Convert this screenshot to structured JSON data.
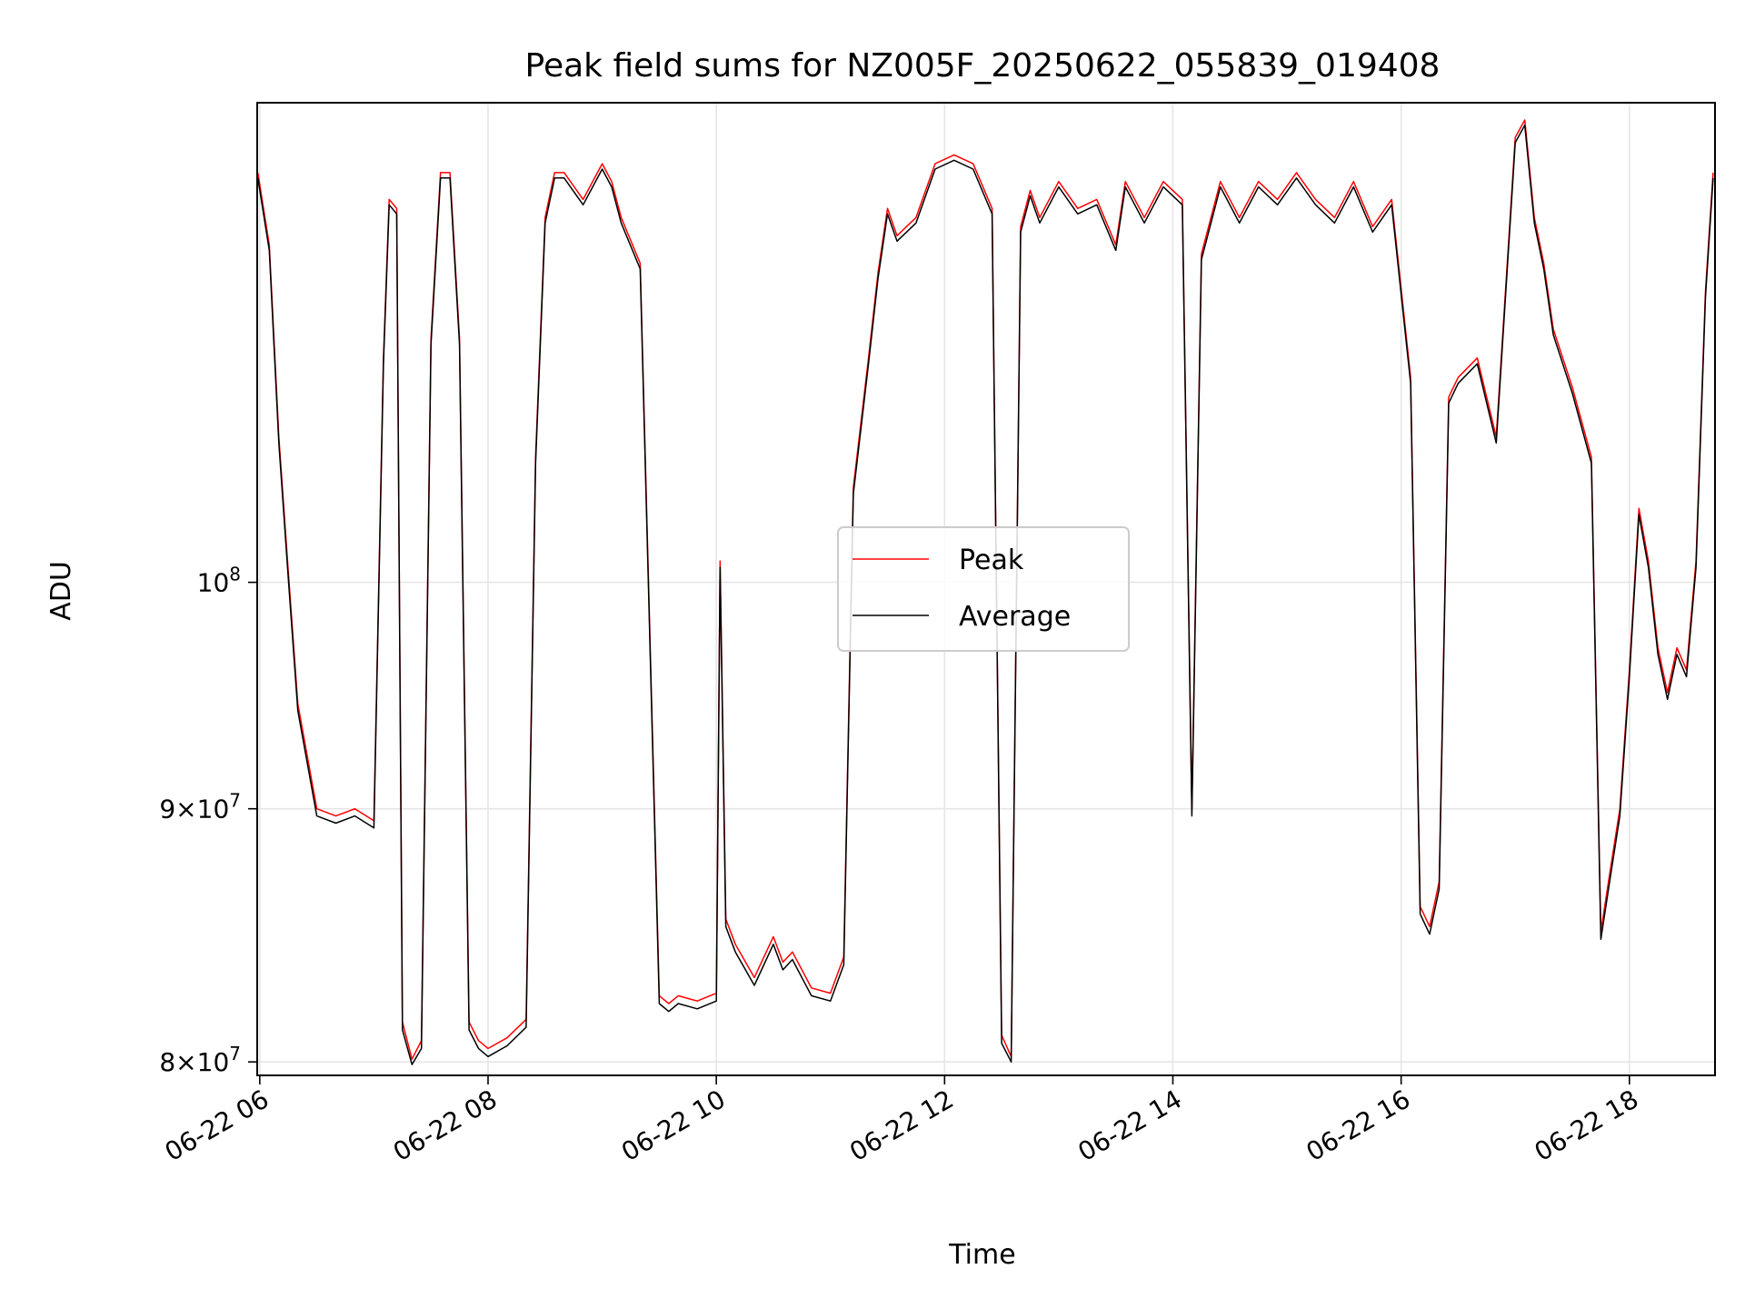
{
  "chart_data": {
    "type": "line",
    "title": "Peak field sums for NZ005F_20250622_055839_019408",
    "xlabel": "Time",
    "ylabel": "ADU",
    "x_range": [
      "2025-06-22T05:58:39",
      "2025-06-22T18:45:00"
    ],
    "y_scale": "log",
    "ylim": [
      79500000,
      125000000
    ],
    "grid": true,
    "legend_placement": "center",
    "x_ticks": [
      "06-22 06",
      "06-22 08",
      "06-22 10",
      "06-22 12",
      "06-22 14",
      "06-22 16",
      "06-22 18"
    ],
    "x_tick_times": [
      "2025-06-22T06:00",
      "2025-06-22T08:00",
      "2025-06-22T10:00",
      "2025-06-22T12:00",
      "2025-06-22T14:00",
      "2025-06-22T16:00",
      "2025-06-22T18:00"
    ],
    "y_ticks": [
      {
        "value": 80000000,
        "mantissa": "8",
        "exp": "7"
      },
      {
        "value": 90000000,
        "mantissa": "9",
        "exp": "7"
      },
      {
        "value": 100000000,
        "mantissa": "",
        "exp": "8"
      }
    ],
    "series": [
      {
        "name": "Peak",
        "color": "#ff0000",
        "x": [
          "2025-06-22T05:59",
          "2025-06-22T06:05",
          "2025-06-22T06:10",
          "2025-06-22T06:15",
          "2025-06-22T06:20",
          "2025-06-22T06:30",
          "2025-06-22T06:40",
          "2025-06-22T06:50",
          "2025-06-22T07:00",
          "2025-06-22T07:05",
          "2025-06-22T07:08",
          "2025-06-22T07:12",
          "2025-06-22T07:15",
          "2025-06-22T07:20",
          "2025-06-22T07:25",
          "2025-06-22T07:30",
          "2025-06-22T07:35",
          "2025-06-22T07:40",
          "2025-06-22T07:45",
          "2025-06-22T07:50",
          "2025-06-22T07:55",
          "2025-06-22T08:00",
          "2025-06-22T08:10",
          "2025-06-22T08:20",
          "2025-06-22T08:25",
          "2025-06-22T08:30",
          "2025-06-22T08:35",
          "2025-06-22T08:40",
          "2025-06-22T08:50",
          "2025-06-22T09:00",
          "2025-06-22T09:05",
          "2025-06-22T09:10",
          "2025-06-22T09:20",
          "2025-06-22T09:30",
          "2025-06-22T09:35",
          "2025-06-22T09:40",
          "2025-06-22T09:50",
          "2025-06-22T10:00",
          "2025-06-22T10:02",
          "2025-06-22T10:05",
          "2025-06-22T10:10",
          "2025-06-22T10:20",
          "2025-06-22T10:30",
          "2025-06-22T10:35",
          "2025-06-22T10:40",
          "2025-06-22T10:50",
          "2025-06-22T11:00",
          "2025-06-22T11:07",
          "2025-06-22T11:12",
          "2025-06-22T11:20",
          "2025-06-22T11:25",
          "2025-06-22T11:30",
          "2025-06-22T11:35",
          "2025-06-22T11:45",
          "2025-06-22T11:55",
          "2025-06-22T12:05",
          "2025-06-22T12:15",
          "2025-06-22T12:25",
          "2025-06-22T12:30",
          "2025-06-22T12:35",
          "2025-06-22T12:40",
          "2025-06-22T12:45",
          "2025-06-22T12:50",
          "2025-06-22T13:00",
          "2025-06-22T13:10",
          "2025-06-22T13:20",
          "2025-06-22T13:30",
          "2025-06-22T13:35",
          "2025-06-22T13:45",
          "2025-06-22T13:55",
          "2025-06-22T14:05",
          "2025-06-22T14:10",
          "2025-06-22T14:15",
          "2025-06-22T14:25",
          "2025-06-22T14:35",
          "2025-06-22T14:45",
          "2025-06-22T14:55",
          "2025-06-22T15:05",
          "2025-06-22T15:15",
          "2025-06-22T15:25",
          "2025-06-22T15:35",
          "2025-06-22T15:45",
          "2025-06-22T15:55",
          "2025-06-22T16:05",
          "2025-06-22T16:10",
          "2025-06-22T16:15",
          "2025-06-22T16:20",
          "2025-06-22T16:25",
          "2025-06-22T16:30",
          "2025-06-22T16:40",
          "2025-06-22T16:50",
          "2025-06-22T17:00",
          "2025-06-22T17:05",
          "2025-06-22T17:10",
          "2025-06-22T17:15",
          "2025-06-22T17:20",
          "2025-06-22T17:30",
          "2025-06-22T17:40",
          "2025-06-22T17:45",
          "2025-06-22T17:50",
          "2025-06-22T17:55",
          "2025-06-22T18:00",
          "2025-06-22T18:05",
          "2025-06-22T18:10",
          "2025-06-22T18:15",
          "2025-06-22T18:20",
          "2025-06-22T18:25",
          "2025-06-22T18:30",
          "2025-06-22T18:35",
          "2025-06-22T18:40",
          "2025-06-22T18:44"
        ],
        "values": [
          121000000,
          117000000,
          107000000,
          100500000,
          94500000,
          90000000,
          89700000,
          90000000,
          89500000,
          111000000,
          119500000,
          119000000,
          81500000,
          80100000,
          80800000,
          112000000,
          121000000,
          121000000,
          112000000,
          81500000,
          80800000,
          80500000,
          80900000,
          81600000,
          106000000,
          118500000,
          121000000,
          121000000,
          119500000,
          121500000,
          120500000,
          118500000,
          116000000,
          82500000,
          82200000,
          82500000,
          82300000,
          82600000,
          101000000,
          85500000,
          84500000,
          83200000,
          84800000,
          83800000,
          84200000,
          82800000,
          82600000,
          84000000,
          104500000,
          111000000,
          115500000,
          119000000,
          117500000,
          118500000,
          121500000,
          122000000,
          121500000,
          119000000,
          81000000,
          80200000,
          118000000,
          120000000,
          118500000,
          120500000,
          119000000,
          119500000,
          117000000,
          120500000,
          118500000,
          120500000,
          119500000,
          90000000,
          116500000,
          120500000,
          118500000,
          120500000,
          119500000,
          121000000,
          119500000,
          118500000,
          120500000,
          118000000,
          119500000,
          110000000,
          86000000,
          85200000,
          87000000,
          109000000,
          110000000,
          111000000,
          107000000,
          123000000,
          124000000,
          118500000,
          116000000,
          112500000,
          109500000,
          106000000,
          85000000,
          87500000,
          90000000,
          96000000,
          103500000,
          101000000,
          97000000,
          95000000,
          97000000,
          96000000,
          101000000,
          114500000,
          121000000
        ]
      },
      {
        "name": "Average",
        "color": "#000000",
        "x": [
          "2025-06-22T05:59",
          "2025-06-22T06:05",
          "2025-06-22T06:10",
          "2025-06-22T06:15",
          "2025-06-22T06:20",
          "2025-06-22T06:30",
          "2025-06-22T06:40",
          "2025-06-22T06:50",
          "2025-06-22T07:00",
          "2025-06-22T07:05",
          "2025-06-22T07:08",
          "2025-06-22T07:12",
          "2025-06-22T07:15",
          "2025-06-22T07:20",
          "2025-06-22T07:25",
          "2025-06-22T07:30",
          "2025-06-22T07:35",
          "2025-06-22T07:40",
          "2025-06-22T07:45",
          "2025-06-22T07:50",
          "2025-06-22T07:55",
          "2025-06-22T08:00",
          "2025-06-22T08:10",
          "2025-06-22T08:20",
          "2025-06-22T08:25",
          "2025-06-22T08:30",
          "2025-06-22T08:35",
          "2025-06-22T08:40",
          "2025-06-22T08:50",
          "2025-06-22T09:00",
          "2025-06-22T09:05",
          "2025-06-22T09:10",
          "2025-06-22T09:20",
          "2025-06-22T09:30",
          "2025-06-22T09:35",
          "2025-06-22T09:40",
          "2025-06-22T09:50",
          "2025-06-22T10:00",
          "2025-06-22T10:02",
          "2025-06-22T10:05",
          "2025-06-22T10:10",
          "2025-06-22T10:20",
          "2025-06-22T10:30",
          "2025-06-22T10:35",
          "2025-06-22T10:40",
          "2025-06-22T10:50",
          "2025-06-22T11:00",
          "2025-06-22T11:07",
          "2025-06-22T11:12",
          "2025-06-22T11:20",
          "2025-06-22T11:25",
          "2025-06-22T11:30",
          "2025-06-22T11:35",
          "2025-06-22T11:45",
          "2025-06-22T11:55",
          "2025-06-22T12:05",
          "2025-06-22T12:15",
          "2025-06-22T12:25",
          "2025-06-22T12:30",
          "2025-06-22T12:35",
          "2025-06-22T12:40",
          "2025-06-22T12:45",
          "2025-06-22T12:50",
          "2025-06-22T13:00",
          "2025-06-22T13:10",
          "2025-06-22T13:20",
          "2025-06-22T13:30",
          "2025-06-22T13:35",
          "2025-06-22T13:45",
          "2025-06-22T13:55",
          "2025-06-22T14:05",
          "2025-06-22T14:10",
          "2025-06-22T14:15",
          "2025-06-22T14:25",
          "2025-06-22T14:35",
          "2025-06-22T14:45",
          "2025-06-22T14:55",
          "2025-06-22T15:05",
          "2025-06-22T15:15",
          "2025-06-22T15:25",
          "2025-06-22T15:35",
          "2025-06-22T15:45",
          "2025-06-22T15:55",
          "2025-06-22T16:05",
          "2025-06-22T16:10",
          "2025-06-22T16:15",
          "2025-06-22T16:20",
          "2025-06-22T16:25",
          "2025-06-22T16:30",
          "2025-06-22T16:40",
          "2025-06-22T16:50",
          "2025-06-22T17:00",
          "2025-06-22T17:05",
          "2025-06-22T17:10",
          "2025-06-22T17:15",
          "2025-06-22T17:20",
          "2025-06-22T17:30",
          "2025-06-22T17:40",
          "2025-06-22T17:45",
          "2025-06-22T17:50",
          "2025-06-22T17:55",
          "2025-06-22T18:00",
          "2025-06-22T18:05",
          "2025-06-22T18:10",
          "2025-06-22T18:15",
          "2025-06-22T18:20",
          "2025-06-22T18:25",
          "2025-06-22T18:30",
          "2025-06-22T18:35",
          "2025-06-22T18:40",
          "2025-06-22T18:44"
        ],
        "values": [
          120700000,
          116700000,
          106700000,
          100200000,
          94200000,
          89700000,
          89400000,
          89700000,
          89200000,
          110700000,
          119200000,
          118700000,
          81200000,
          79900000,
          80500000,
          111700000,
          120700000,
          120700000,
          111700000,
          81200000,
          80500000,
          80200000,
          80600000,
          81300000,
          105700000,
          118200000,
          120700000,
          120700000,
          119200000,
          121200000,
          120200000,
          118200000,
          115700000,
          82200000,
          81900000,
          82200000,
          82000000,
          82300000,
          100700000,
          85200000,
          84200000,
          82900000,
          84500000,
          83500000,
          83900000,
          82500000,
          82300000,
          83700000,
          104200000,
          110700000,
          115200000,
          118700000,
          117200000,
          118200000,
          121200000,
          121700000,
          121200000,
          118700000,
          80700000,
          80000000,
          117700000,
          119700000,
          118200000,
          120200000,
          118700000,
          119200000,
          116700000,
          120200000,
          118200000,
          120200000,
          119200000,
          89700000,
          116200000,
          120200000,
          118200000,
          120200000,
          119200000,
          120700000,
          119200000,
          118200000,
          120200000,
          117700000,
          119200000,
          109700000,
          85700000,
          84900000,
          86700000,
          108700000,
          109700000,
          110700000,
          106700000,
          122700000,
          123700000,
          118200000,
          115700000,
          112200000,
          109200000,
          105700000,
          84700000,
          87200000,
          89700000,
          95700000,
          103200000,
          100700000,
          96700000,
          94700000,
          96700000,
          95700000,
          100700000,
          114200000,
          120700000
        ]
      }
    ]
  }
}
